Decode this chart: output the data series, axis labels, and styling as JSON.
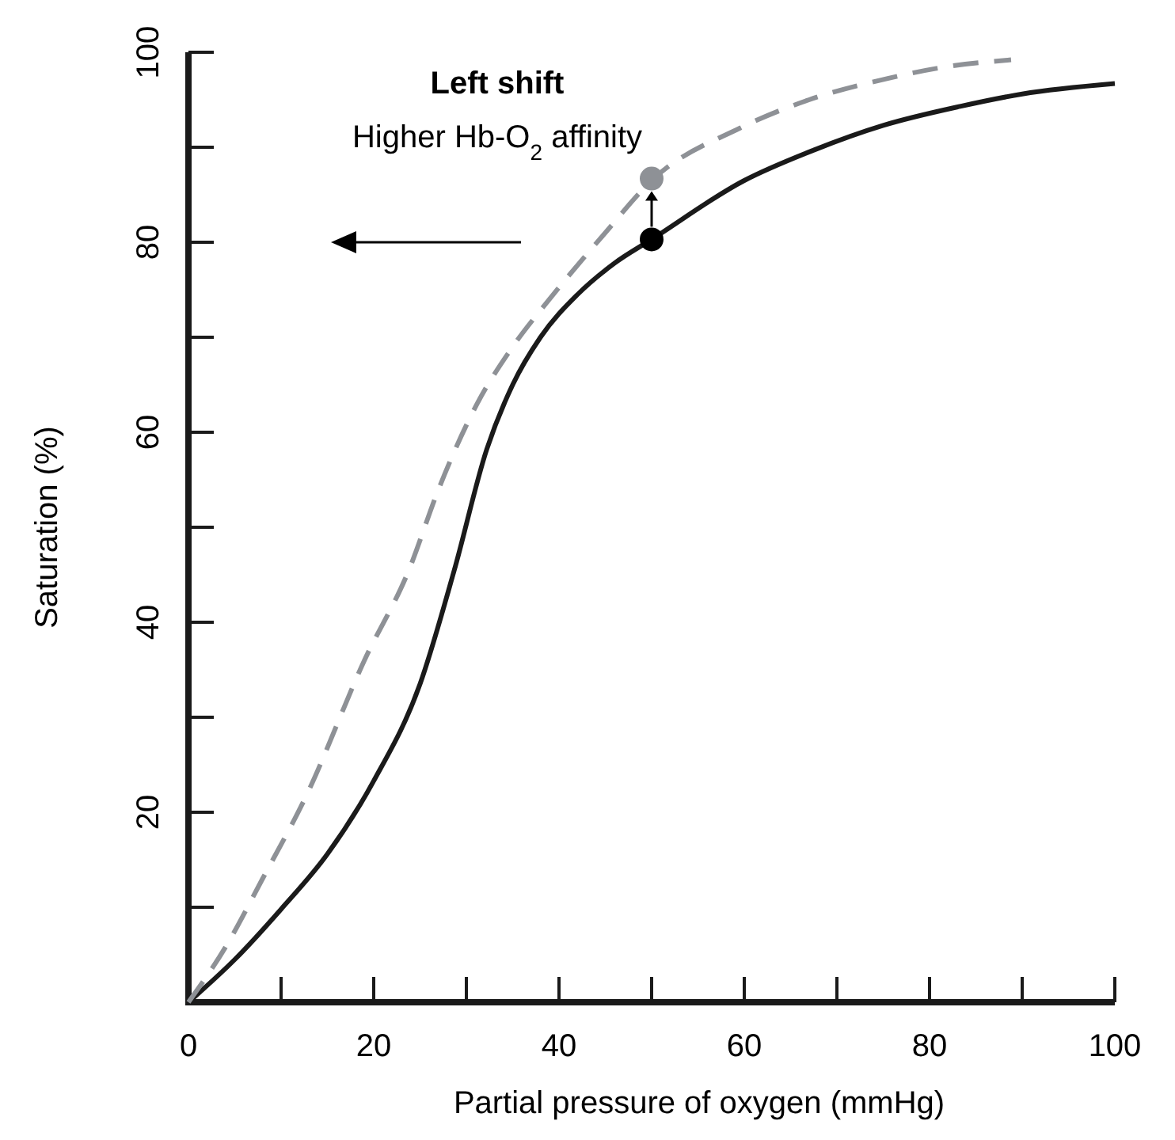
{
  "chart_data": {
    "type": "line",
    "xlabel": "Partial pressure of oxygen (mmHg)",
    "ylabel": "Saturation (%)",
    "annotations": [
      "Left shift",
      "Higher Hb-O$_{2}$ affinity"
    ],
    "xlim": [
      0,
      100
    ],
    "ylim": [
      0,
      100
    ],
    "xticks": [
      0,
      {
        "value": 10,
        "label": null
      },
      20,
      {
        "value": 30,
        "label": null
      },
      40,
      {
        "value": 50,
        "label": null
      },
      60,
      {
        "value": 70,
        "label": null
      },
      80,
      {
        "value": 90,
        "label": null
      },
      100
    ],
    "yticks": [
      {
        "value": 0,
        "label": null
      },
      {
        "value": 10,
        "label": null
      },
      20,
      {
        "value": 30,
        "label": null
      },
      40,
      {
        "value": 50,
        "label": null
      },
      60,
      {
        "value": 70,
        "label": null
      },
      80,
      {
        "value": 90,
        "label": null
      },
      100
    ],
    "grid": false,
    "series": [
      {
        "color": "#1a1a1a",
        "line_style": "solid",
        "marker": "none",
        "x": [
          0,
          5,
          10,
          15,
          20,
          25,
          28.7,
          32.2,
          35,
          38,
          42,
          46,
          50,
          60,
          67.5,
          75,
          83.3,
          90,
          100
        ],
        "values": [
          0,
          4.5,
          9.8,
          15.6,
          23.3,
          33.5,
          45.5,
          58.2,
          65,
          70,
          74.5,
          77.8,
          80.3,
          86.5,
          89.7,
          92.3,
          94.3,
          95.6,
          96.7
        ]
      },
      {
        "color": "#8e9196",
        "line_style": "dashed",
        "marker": "none",
        "x": [
          0,
          4,
          8,
          12.7,
          19,
          23.8,
          27,
          31,
          35,
          38.8,
          45,
          50,
          59.5,
          67,
          75.3,
          82,
          88.8
        ],
        "values": [
          0,
          5.8,
          13,
          21.7,
          36,
          45.5,
          54,
          62.7,
          69,
          73.8,
          81,
          86.5,
          92,
          95,
          97.2,
          98.5,
          99.2
        ]
      },
      {
        "type": "scatter",
        "marker": "circle",
        "x": [
          50
        ],
        "values": [
          86.7
        ],
        "color": "#8e9196"
      },
      {
        "type": "scatter",
        "marker": "circle",
        "x": [
          50
        ],
        "values": [
          80.3
        ],
        "color": "#000000"
      }
    ]
  }
}
